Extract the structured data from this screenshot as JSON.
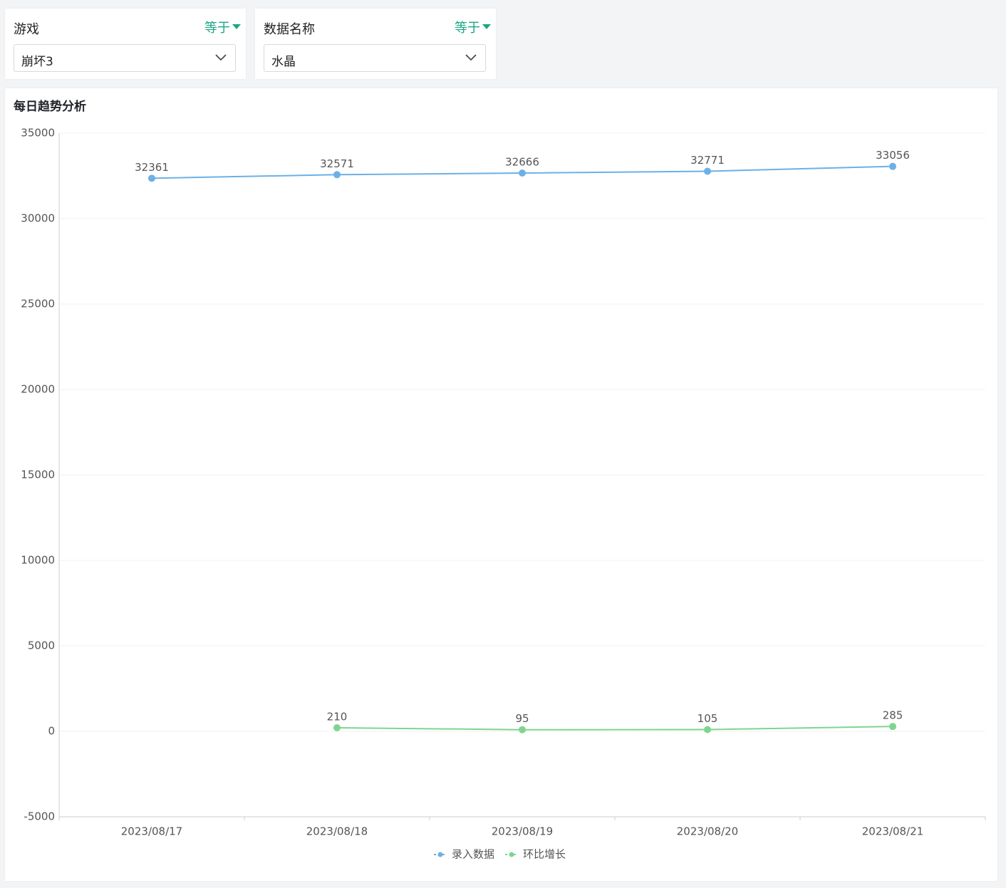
{
  "filters": [
    {
      "label": "游戏",
      "operator": "等于",
      "value": "崩坏3"
    },
    {
      "label": "数据名称",
      "operator": "等于",
      "value": "水晶"
    }
  ],
  "chart_data": {
    "type": "line",
    "title": "每日趋势分析",
    "categories": [
      "2023/08/17",
      "2023/08/18",
      "2023/08/19",
      "2023/08/20",
      "2023/08/21"
    ],
    "series": [
      {
        "name": "录入数据",
        "color": "#6cb0e6",
        "values": [
          32361,
          32571,
          32666,
          32771,
          33056
        ]
      },
      {
        "name": "环比增长",
        "color": "#7fd58f",
        "values": [
          null,
          210,
          95,
          105,
          285
        ]
      }
    ],
    "ylim": [
      -5000,
      35000
    ],
    "yticks": [
      -5000,
      0,
      5000,
      10000,
      15000,
      20000,
      25000,
      30000,
      35000
    ],
    "grid": true,
    "legend": "bottom"
  }
}
